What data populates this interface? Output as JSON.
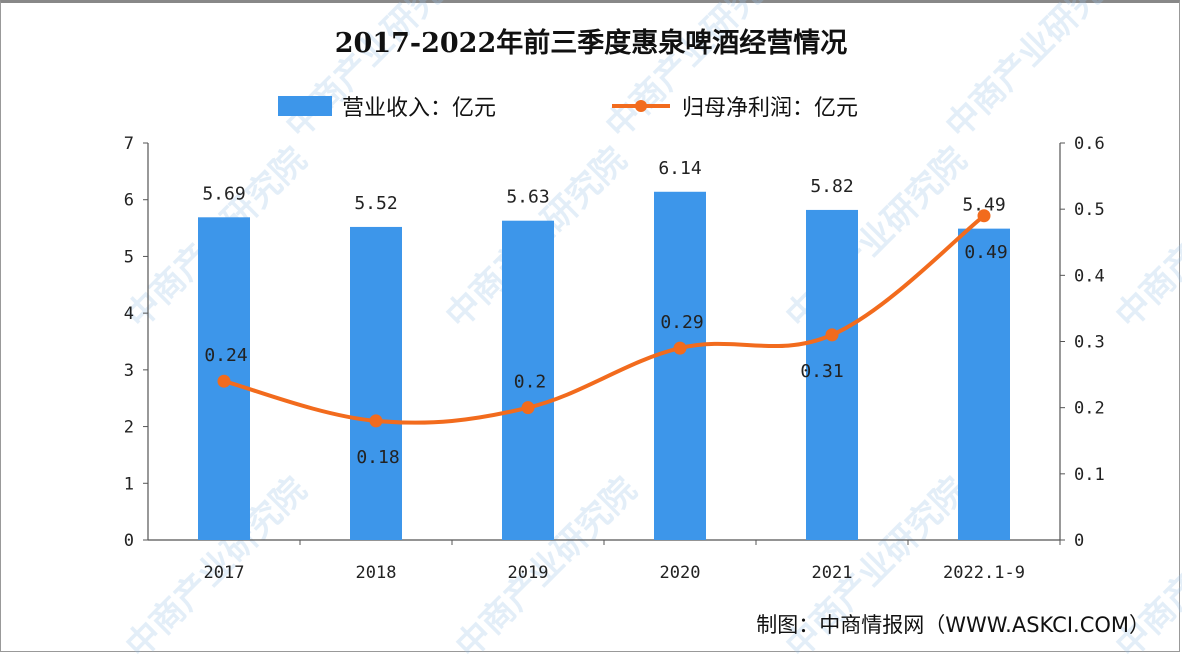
{
  "watermark": "中商产业研究院",
  "source": "制图：中商情报网（WWW.ASKCI.COM）",
  "chart_data": {
    "type": "bar+line",
    "title": "2017-2022年前三季度惠泉啤酒经营情况",
    "categories": [
      "2017",
      "2018",
      "2019",
      "2020",
      "2021",
      "2022.1-9"
    ],
    "series": [
      {
        "name": "营业收入：亿元",
        "type": "bar",
        "axis": "left",
        "color": "#3d96ea",
        "values": [
          5.69,
          5.52,
          5.63,
          6.14,
          5.82,
          5.49
        ],
        "labels": [
          "5.69",
          "5.52",
          "5.63",
          "6.14",
          "5.82",
          "5.49"
        ]
      },
      {
        "name": "归母净利润：亿元",
        "type": "line",
        "smooth": true,
        "axis": "right",
        "color": "#f26b1d",
        "values": [
          0.24,
          0.18,
          0.2,
          0.29,
          0.31,
          0.49
        ],
        "labels": [
          "0.24",
          "0.18",
          "0.2",
          "0.29",
          "0.31",
          "0.49"
        ]
      }
    ],
    "y_left": {
      "range": [
        0,
        7
      ],
      "ticks": [
        "0",
        "1",
        "2",
        "3",
        "4",
        "5",
        "6",
        "7"
      ]
    },
    "y_right": {
      "range": [
        0,
        0.6
      ],
      "ticks": [
        "0",
        "0.1",
        "0.2",
        "0.3",
        "0.4",
        "0.5",
        "0.6"
      ]
    },
    "grid": false,
    "legend_placement": "top"
  }
}
